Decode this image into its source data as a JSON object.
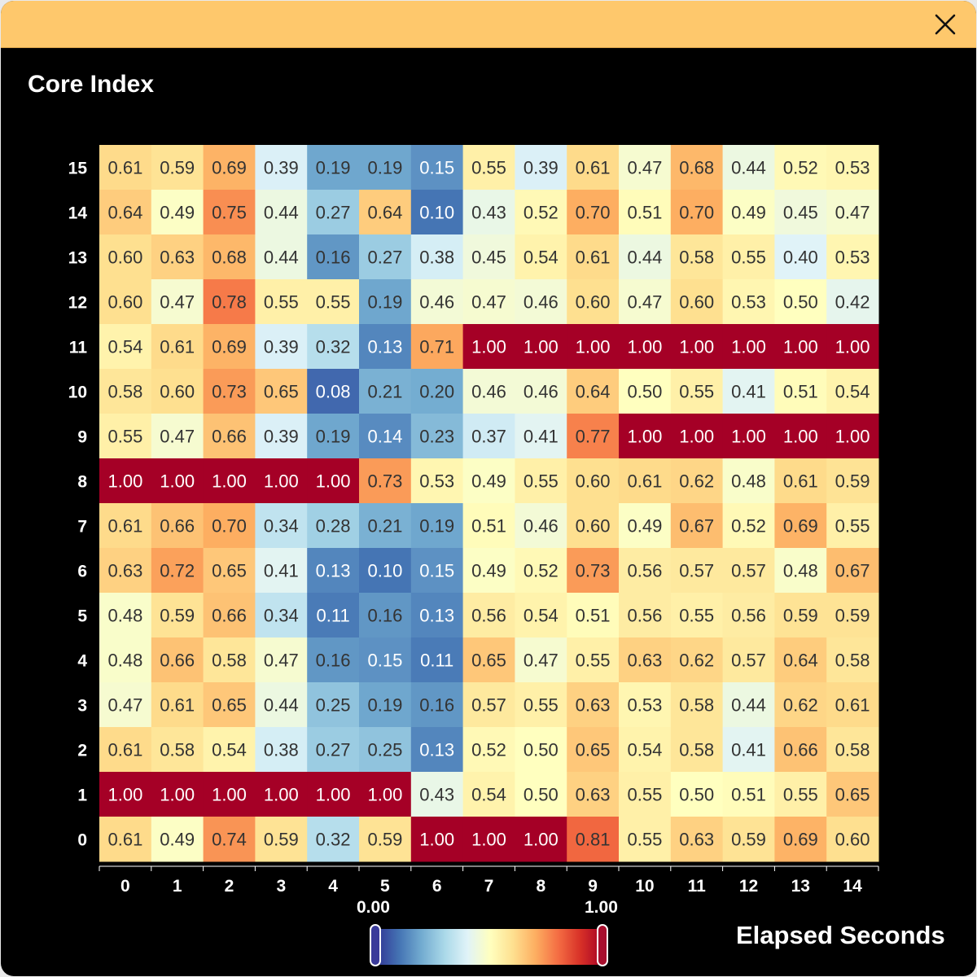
{
  "window": {
    "close_icon": "close-icon",
    "titlebar_color": "#fec86c"
  },
  "chart_data": {
    "type": "heatmap",
    "ylabel": "Core Index",
    "legend_title": "Elapsed Seconds",
    "colormap": "RdYlBu reversed",
    "color_min_label": "0.00",
    "color_max_label": "1.00",
    "color_range": [
      0,
      1
    ],
    "x_ticks": [
      "0",
      "1",
      "2",
      "3",
      "4",
      "5",
      "6",
      "7",
      "8",
      "9",
      "10",
      "11",
      "12",
      "13",
      "14"
    ],
    "y_ticks": [
      "15",
      "14",
      "13",
      "12",
      "11",
      "10",
      "9",
      "8",
      "7",
      "6",
      "5",
      "4",
      "3",
      "2",
      "1",
      "0"
    ],
    "values": [
      [
        0.61,
        0.59,
        0.69,
        0.39,
        0.19,
        0.19,
        0.15,
        0.55,
        0.39,
        0.61,
        0.47,
        0.68,
        0.44,
        0.52,
        0.53
      ],
      [
        0.64,
        0.49,
        0.75,
        0.44,
        0.27,
        0.64,
        0.1,
        0.43,
        0.52,
        0.7,
        0.51,
        0.7,
        0.49,
        0.45,
        0.47
      ],
      [
        0.6,
        0.63,
        0.68,
        0.44,
        0.16,
        0.27,
        0.38,
        0.45,
        0.54,
        0.61,
        0.44,
        0.58,
        0.55,
        0.4,
        0.53
      ],
      [
        0.6,
        0.47,
        0.78,
        0.55,
        0.55,
        0.19,
        0.46,
        0.47,
        0.46,
        0.6,
        0.47,
        0.6,
        0.53,
        0.5,
        0.42
      ],
      [
        0.54,
        0.61,
        0.69,
        0.39,
        0.32,
        0.13,
        0.71,
        1.0,
        1.0,
        1.0,
        1.0,
        1.0,
        1.0,
        1.0,
        1.0
      ],
      [
        0.58,
        0.6,
        0.73,
        0.65,
        0.08,
        0.21,
        0.2,
        0.46,
        0.46,
        0.64,
        0.5,
        0.55,
        0.41,
        0.51,
        0.54
      ],
      [
        0.55,
        0.47,
        0.66,
        0.39,
        0.19,
        0.14,
        0.23,
        0.37,
        0.41,
        0.77,
        1.0,
        1.0,
        1.0,
        1.0,
        1.0
      ],
      [
        1.0,
        1.0,
        1.0,
        1.0,
        1.0,
        0.73,
        0.53,
        0.49,
        0.55,
        0.6,
        0.61,
        0.62,
        0.48,
        0.61,
        0.59
      ],
      [
        0.61,
        0.66,
        0.7,
        0.34,
        0.28,
        0.21,
        0.19,
        0.51,
        0.46,
        0.6,
        0.49,
        0.67,
        0.52,
        0.69,
        0.55
      ],
      [
        0.63,
        0.72,
        0.65,
        0.41,
        0.13,
        0.1,
        0.15,
        0.49,
        0.52,
        0.73,
        0.56,
        0.57,
        0.57,
        0.48,
        0.67
      ],
      [
        0.48,
        0.59,
        0.66,
        0.34,
        0.11,
        0.16,
        0.13,
        0.56,
        0.54,
        0.51,
        0.56,
        0.55,
        0.56,
        0.59,
        0.59
      ],
      [
        0.48,
        0.66,
        0.58,
        0.47,
        0.16,
        0.15,
        0.11,
        0.65,
        0.47,
        0.55,
        0.63,
        0.62,
        0.57,
        0.64,
        0.58
      ],
      [
        0.47,
        0.61,
        0.65,
        0.44,
        0.25,
        0.19,
        0.16,
        0.57,
        0.55,
        0.63,
        0.53,
        0.58,
        0.44,
        0.62,
        0.61
      ],
      [
        0.61,
        0.58,
        0.54,
        0.38,
        0.27,
        0.25,
        0.13,
        0.52,
        0.5,
        0.65,
        0.54,
        0.58,
        0.41,
        0.66,
        0.58
      ],
      [
        1.0,
        1.0,
        1.0,
        1.0,
        1.0,
        1.0,
        0.43,
        0.54,
        0.5,
        0.63,
        0.55,
        0.5,
        0.51,
        0.55,
        0.65
      ],
      [
        0.61,
        0.49,
        0.74,
        0.59,
        0.32,
        0.59,
        1.0,
        1.0,
        1.0,
        0.81,
        0.55,
        0.63,
        0.59,
        0.69,
        0.6
      ]
    ]
  }
}
